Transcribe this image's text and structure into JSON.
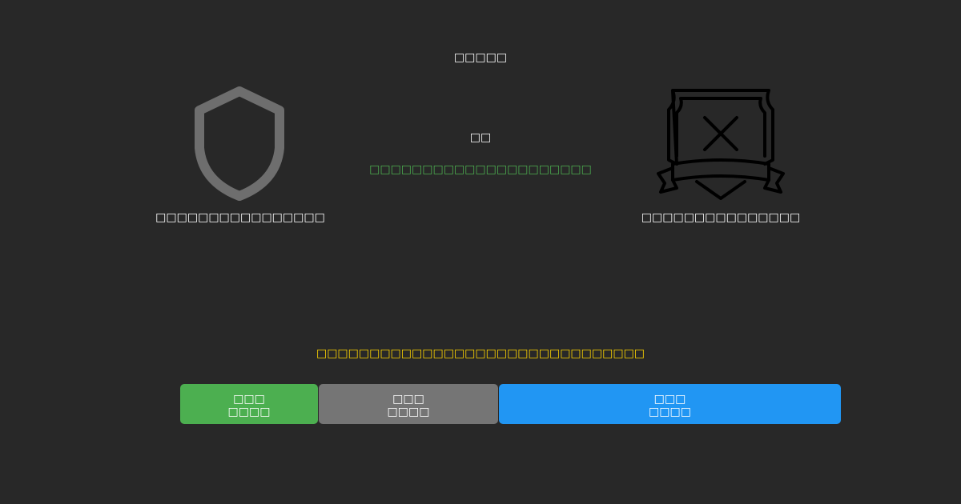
{
  "header": {
    "title": "□□□□□"
  },
  "left": {
    "label": "□□□□□□□□□□□□□□□□"
  },
  "center": {
    "vs": "□□",
    "status": "□□□□□□□□□□□□□□□□□□□□□"
  },
  "right": {
    "label": "□□□□□□□□□□□□□□□"
  },
  "notice": "□□□□□□□□□□□□□□□□□□□□□□□□□□□□□□□",
  "buttons": [
    {
      "line1": "□□□",
      "line2": "□□□□"
    },
    {
      "line1": "□□□",
      "line2": "□□□□"
    },
    {
      "line1": "□□□",
      "line2": "□□□□"
    }
  ]
}
